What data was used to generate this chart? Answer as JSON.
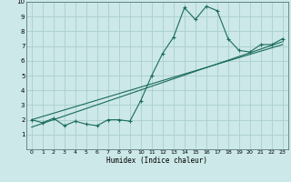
{
  "title": "",
  "xlabel": "Humidex (Indice chaleur)",
  "xlim": [
    -0.5,
    23.5
  ],
  "ylim": [
    0,
    10
  ],
  "xticks": [
    0,
    1,
    2,
    3,
    4,
    5,
    6,
    7,
    8,
    9,
    10,
    11,
    12,
    13,
    14,
    15,
    16,
    17,
    18,
    19,
    20,
    21,
    22,
    23
  ],
  "yticks": [
    1,
    2,
    3,
    4,
    5,
    6,
    7,
    8,
    9,
    10
  ],
  "background_color": "#cce8e8",
  "grid_color": "#aacece",
  "line_color": "#1a6b5a",
  "curve_x": [
    0,
    1,
    2,
    3,
    4,
    5,
    6,
    7,
    8,
    9,
    10,
    11,
    12,
    13,
    14,
    15,
    16,
    17,
    18,
    19,
    20,
    21,
    22,
    23
  ],
  "curve_y": [
    2.0,
    1.8,
    2.1,
    1.6,
    1.9,
    1.7,
    1.6,
    2.0,
    2.0,
    1.9,
    3.3,
    5.0,
    6.5,
    7.6,
    9.6,
    8.8,
    9.7,
    9.4,
    7.5,
    6.7,
    6.6,
    7.1,
    7.1,
    7.5
  ],
  "line1_x": [
    0,
    23
  ],
  "line1_y": [
    2.0,
    7.1
  ],
  "line2_x": [
    0,
    23
  ],
  "line2_y": [
    1.5,
    7.3
  ]
}
